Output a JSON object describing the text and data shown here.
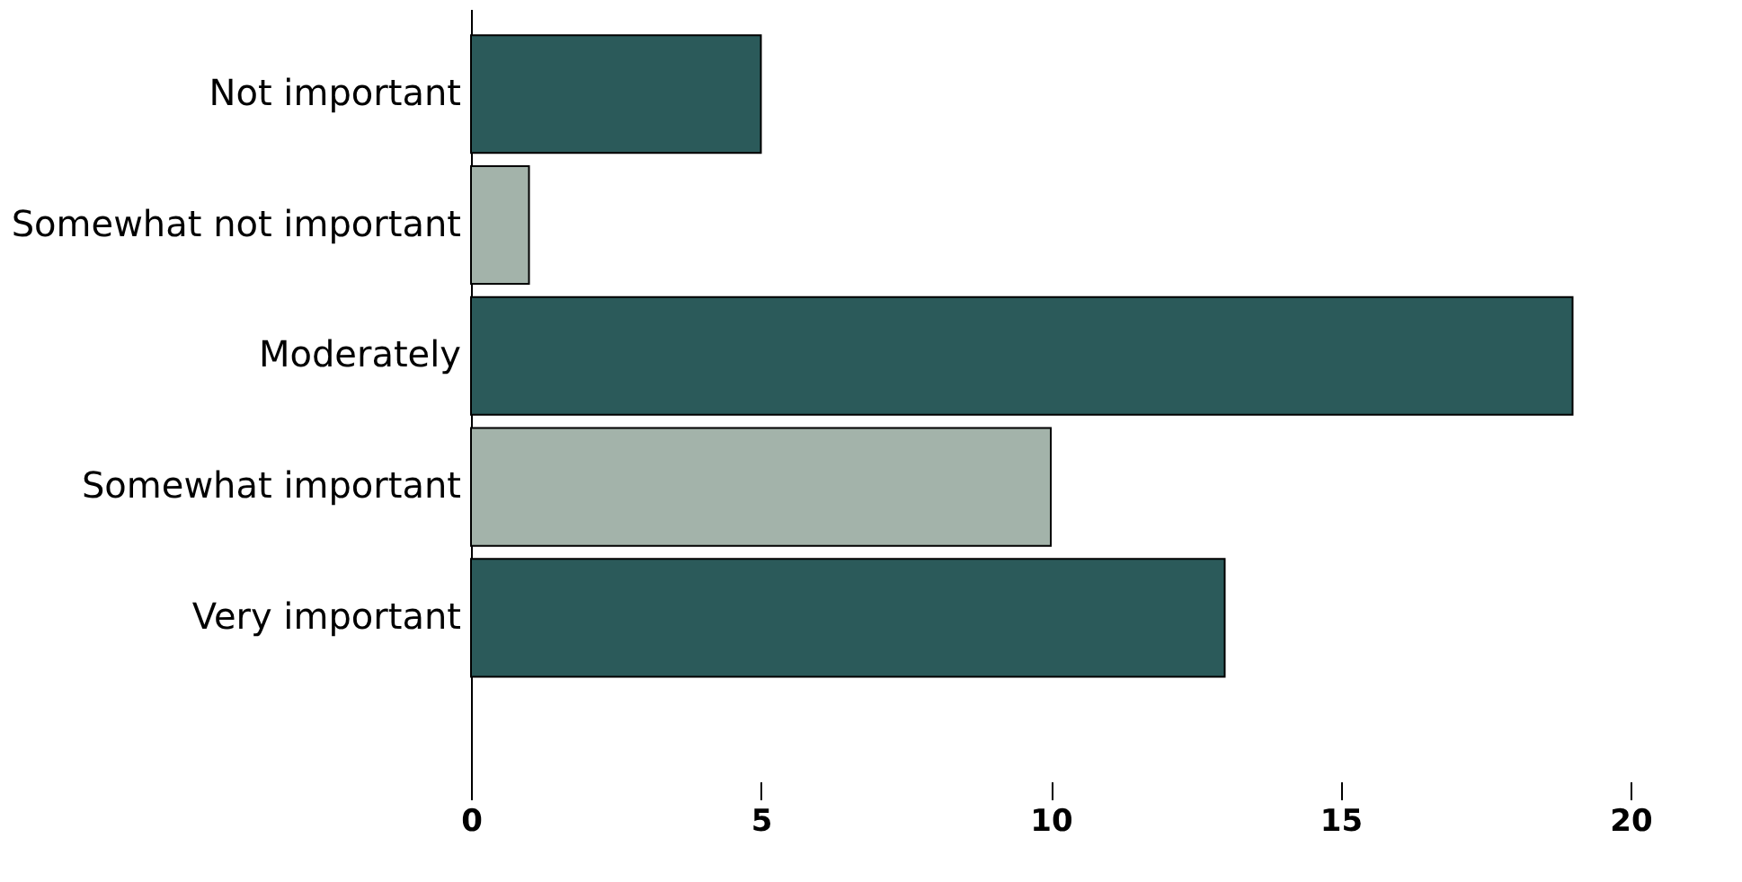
{
  "chart_data": {
    "type": "bar",
    "orientation": "horizontal",
    "categories": [
      "Not important",
      "Somewhat not important",
      "Moderately",
      "Somewhat important",
      "Very important"
    ],
    "values": [
      5,
      1,
      19,
      10,
      13
    ],
    "colors": [
      "#2b5a5a",
      "#a3b3aa",
      "#2b5a5a",
      "#a3b3aa",
      "#2b5a5a"
    ],
    "xlim": [
      0,
      20
    ],
    "xticks": [
      0,
      5,
      10,
      15,
      20
    ],
    "grid": false
  }
}
